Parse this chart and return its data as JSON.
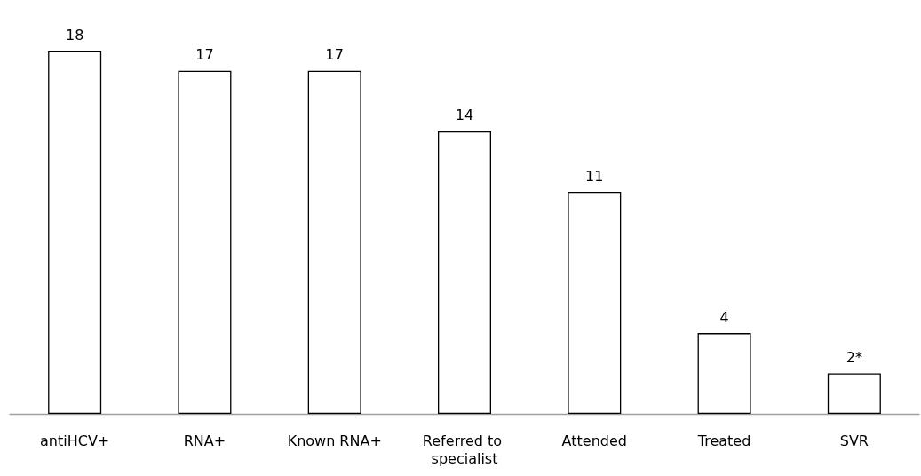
{
  "chart_data": {
    "type": "bar",
    "categories": [
      "antiHCV+",
      "RNA+",
      "Known RNA+",
      "Referred to specialist",
      "Attended",
      "Treated",
      "SVR"
    ],
    "values": [
      18,
      17,
      17,
      14,
      11,
      4,
      2
    ],
    "value_labels": [
      "18",
      "17",
      "17",
      "14",
      "11",
      "4",
      "2*"
    ],
    "color": "#ffffff"
  }
}
